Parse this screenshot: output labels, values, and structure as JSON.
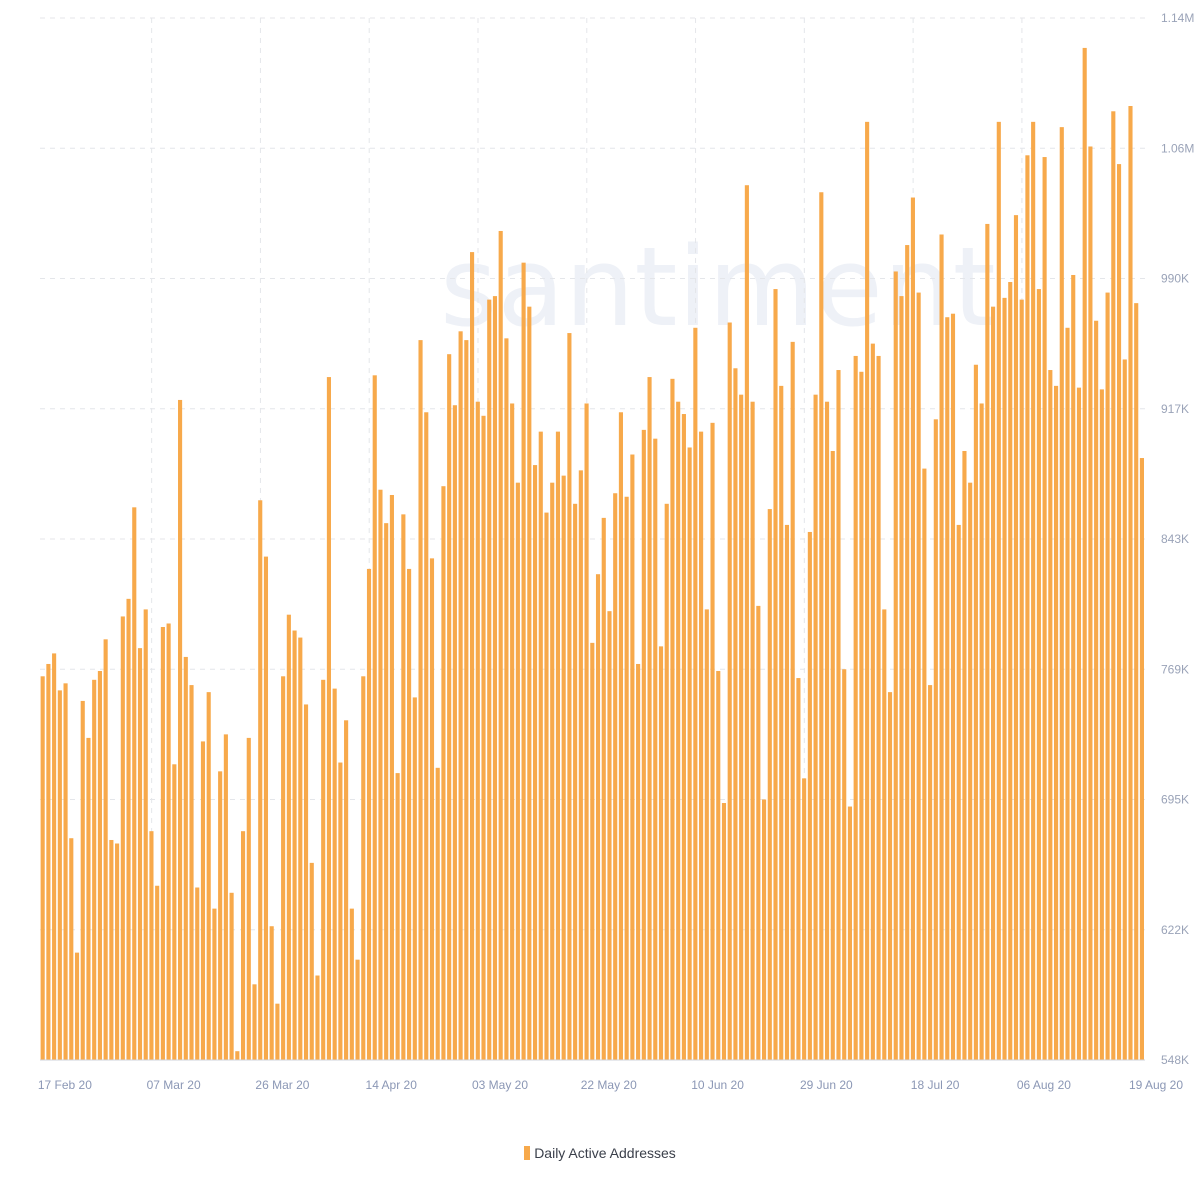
{
  "colors": {
    "bar": "#f7a94b",
    "grid": "#e4e6ea",
    "axis": "#cfd3db"
  },
  "watermark": "santiment",
  "chart_data": {
    "type": "bar",
    "series": [
      {
        "name": "Daily Active Addresses",
        "values": [
          766000,
          773000,
          779000,
          758000,
          762000,
          674000,
          609000,
          752000,
          731000,
          764000,
          769000,
          787000,
          673000,
          671000,
          800000,
          810000,
          862000,
          782000,
          804000,
          678000,
          647000,
          794000,
          796000,
          716000,
          923000,
          777000,
          761000,
          646000,
          729000,
          757000,
          634000,
          712000,
          733000,
          643000,
          553000,
          678000,
          731000,
          591000,
          866000,
          834000,
          624000,
          580000,
          766000,
          801000,
          792000,
          788000,
          750000,
          660000,
          596000,
          764000,
          936000,
          759000,
          717000,
          741000,
          634000,
          605000,
          766000,
          827000,
          937000,
          872000,
          853000,
          869000,
          711000,
          858000,
          827000,
          754000,
          957000,
          916000,
          833000,
          714000,
          874000,
          949000,
          920000,
          962000,
          957000,
          1007000,
          922000,
          914000,
          980000,
          982000,
          1019000,
          958000,
          921000,
          876000,
          1001000,
          976000,
          886000,
          905000,
          859000,
          876000,
          905000,
          880000,
          961000,
          864000,
          883000,
          921000,
          785000,
          824000,
          856000,
          803000,
          870000,
          916000,
          868000,
          892000,
          773000,
          906000,
          936000,
          901000,
          783000,
          864000,
          935000,
          922000,
          915000,
          896000,
          964000,
          905000,
          804000,
          910000,
          769000,
          694000,
          967000,
          941000,
          926000,
          1045000,
          922000,
          806000,
          696000,
          861000,
          986000,
          931000,
          852000,
          956000,
          765000,
          708000,
          848000,
          926000,
          1041000,
          922000,
          894000,
          940000,
          770000,
          692000,
          948000,
          939000,
          1081000,
          955000,
          948000,
          804000,
          757000,
          996000,
          982000,
          1011000,
          1038000,
          984000,
          884000,
          761000,
          912000,
          1017000,
          970000,
          972000,
          852000,
          894000,
          876000,
          943000,
          921000,
          1023000,
          976000,
          1081000,
          981000,
          990000,
          1028000,
          980000,
          1062000,
          1081000,
          986000,
          1061000,
          940000,
          931000,
          1078000,
          964000,
          994000,
          930000,
          1123000,
          1067000,
          968000,
          929000,
          984000,
          1087000,
          1057000,
          946000,
          1090000,
          978000,
          890000
        ],
        "color": "#f7a94b"
      }
    ],
    "x_labels": [
      "17 Feb 20",
      "07 Mar 20",
      "26 Mar 20",
      "14 Apr 20",
      "03 May 20",
      "22 May 20",
      "10 Jun 20",
      "29 Jun 20",
      "18 Jul 20",
      "06 Aug 20",
      "19 Aug 20"
    ],
    "y_ticks": [
      "548K",
      "622K",
      "695K",
      "769K",
      "843K",
      "917K",
      "990K",
      "1.06M",
      "1.14M"
    ],
    "ylim": [
      548000,
      1140000
    ],
    "grid": true,
    "legend": {
      "position": "bottom-center",
      "label": "Daily Active Addresses"
    }
  }
}
